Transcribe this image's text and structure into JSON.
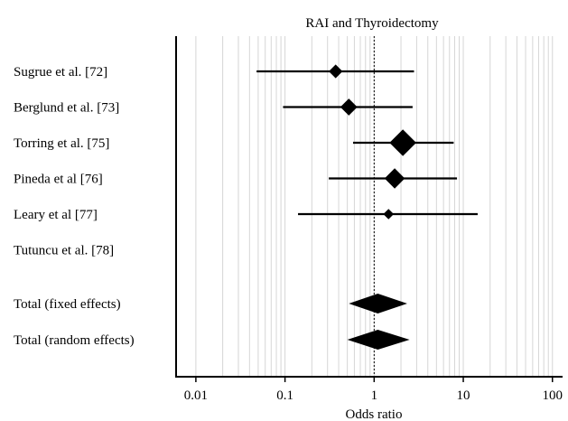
{
  "chart_data": {
    "type": "forest",
    "title": "RAI and Thyroidectomy",
    "xlabel": "Odds ratio",
    "x_scale": "log",
    "xlim": [
      0.006,
      130
    ],
    "x_ticks": [
      {
        "value": 0.01,
        "label": "0.01"
      },
      {
        "value": 0.1,
        "label": "0.1"
      },
      {
        "value": 1,
        "label": "1"
      },
      {
        "value": 10,
        "label": "10"
      },
      {
        "value": 100,
        "label": "100"
      }
    ],
    "grid": true,
    "reference_line": 1,
    "studies": [
      {
        "label": "Sugrue et al. [72]",
        "or": 0.37,
        "lower": 0.048,
        "upper": 2.8,
        "weight": 2
      },
      {
        "label": "Berglund et al. [73]",
        "or": 0.52,
        "lower": 0.095,
        "upper": 2.7,
        "weight": 3
      },
      {
        "label": "Torring et al. [75]",
        "or": 2.1,
        "lower": 0.58,
        "upper": 7.8,
        "weight": 6
      },
      {
        "label": "Pineda et al [76]",
        "or": 1.7,
        "lower": 0.31,
        "upper": 8.5,
        "weight": 4
      },
      {
        "label": "Leary et al [77]",
        "or": 1.45,
        "lower": 0.14,
        "upper": 14.5,
        "weight": 1
      },
      {
        "label": "Tutuncu et al. [78]",
        "or": null,
        "lower": null,
        "upper": null,
        "weight": 0
      }
    ],
    "pooled": [
      {
        "label": "Total (fixed effects)",
        "or": 1.1,
        "lower": 0.52,
        "upper": 2.35
      },
      {
        "label": "Total (random effects)",
        "or": 1.1,
        "lower": 0.5,
        "upper": 2.5
      }
    ]
  }
}
